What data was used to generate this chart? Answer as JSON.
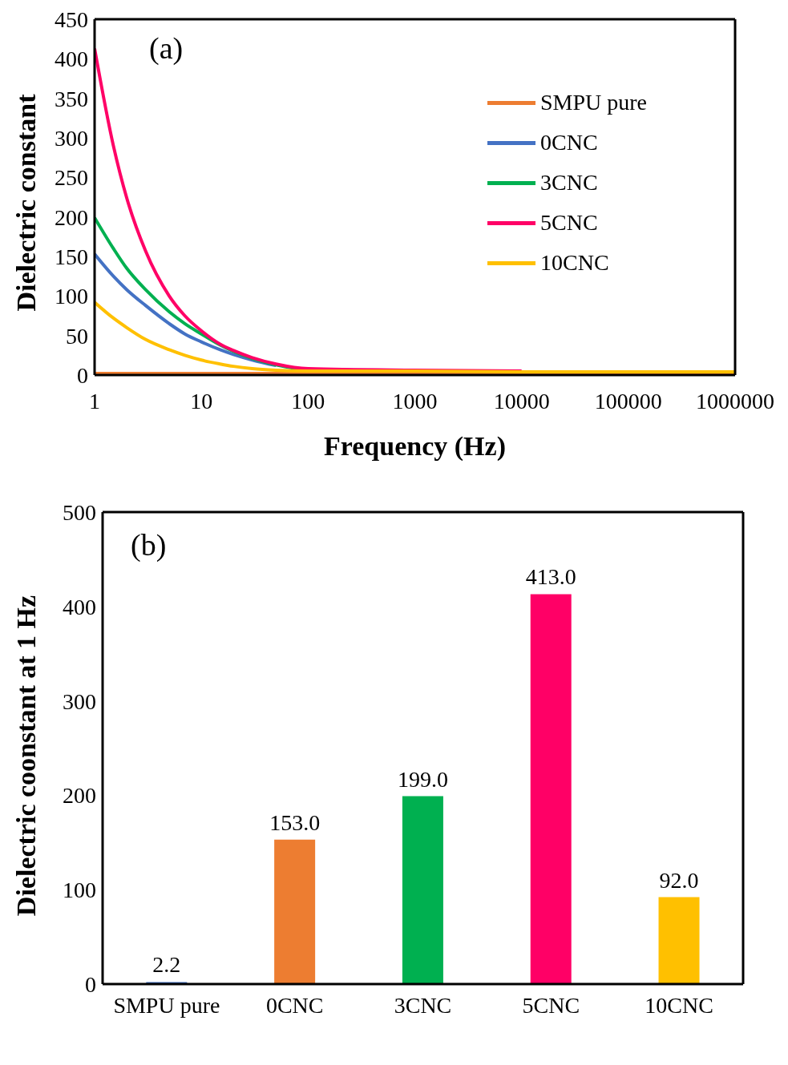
{
  "chart_data": [
    {
      "type": "line",
      "annotations": [
        "(a)"
      ],
      "xlabel": "Frequency (Hz)",
      "ylabel": "Dielectric constant",
      "log": "x",
      "xlim": [
        1,
        1000000
      ],
      "xticks": [
        1,
        10,
        100,
        1000,
        10000,
        100000,
        1000000
      ],
      "ylim": [
        0,
        450
      ],
      "yticks": [
        0,
        50,
        100,
        150,
        200,
        250,
        300,
        350,
        400,
        450
      ],
      "grid": false,
      "legend": "top right",
      "marker": "none",
      "line_style": "solid",
      "x": [
        1,
        1.5,
        2,
        3,
        5,
        7,
        10,
        15,
        20,
        30,
        50,
        100,
        1000,
        10000,
        100000,
        1000000
      ],
      "series": [
        {
          "name": "SMPU pure",
          "color": "#ed7d31",
          "values": [
            2,
            2,
            2,
            2,
            2,
            2,
            2,
            2,
            2,
            2,
            2,
            2,
            2,
            2,
            2,
            2
          ]
        },
        {
          "name": "0CNC",
          "color": "#4472c4",
          "values": [
            153,
            125,
            108,
            88,
            65,
            52,
            42,
            32,
            26,
            19,
            12,
            null,
            null,
            null,
            null,
            null
          ]
        },
        {
          "name": "3CNC",
          "color": "#00b050",
          "values": [
            199,
            160,
            135,
            108,
            80,
            65,
            52,
            38,
            30,
            21,
            13,
            7,
            5,
            null,
            null,
            null
          ]
        },
        {
          "name": "5CNC",
          "color": "#ff0066",
          "values": [
            413,
            290,
            224,
            157,
            100,
            75,
            56,
            39,
            31,
            22,
            14,
            8,
            6,
            5,
            null,
            null
          ]
        },
        {
          "name": "10CNC",
          "color": "#ffc000",
          "values": [
            92,
            72,
            60,
            45,
            32,
            25,
            19,
            14,
            11,
            8,
            6,
            5,
            5,
            4,
            4,
            4
          ]
        }
      ]
    },
    {
      "type": "bar",
      "annotations": [
        "(b)"
      ],
      "ylabel": "Dielectric coonstant at 1 Hz",
      "categories": [
        "SMPU pure",
        "0CNC",
        "3CNC",
        "5CNC",
        "10CNC"
      ],
      "values": [
        2.2,
        153,
        199,
        413,
        92
      ],
      "value_labels": [
        "2.2",
        "153.0",
        "199.0",
        "413.0",
        "92.0"
      ],
      "colors": [
        "#4472c4",
        "#ed7d31",
        "#00b050",
        "#ff0066",
        "#ffc000"
      ],
      "ylim": [
        0,
        500
      ],
      "yticks": [
        0,
        100,
        200,
        300,
        400,
        500
      ],
      "grid": false,
      "legend": false
    }
  ]
}
